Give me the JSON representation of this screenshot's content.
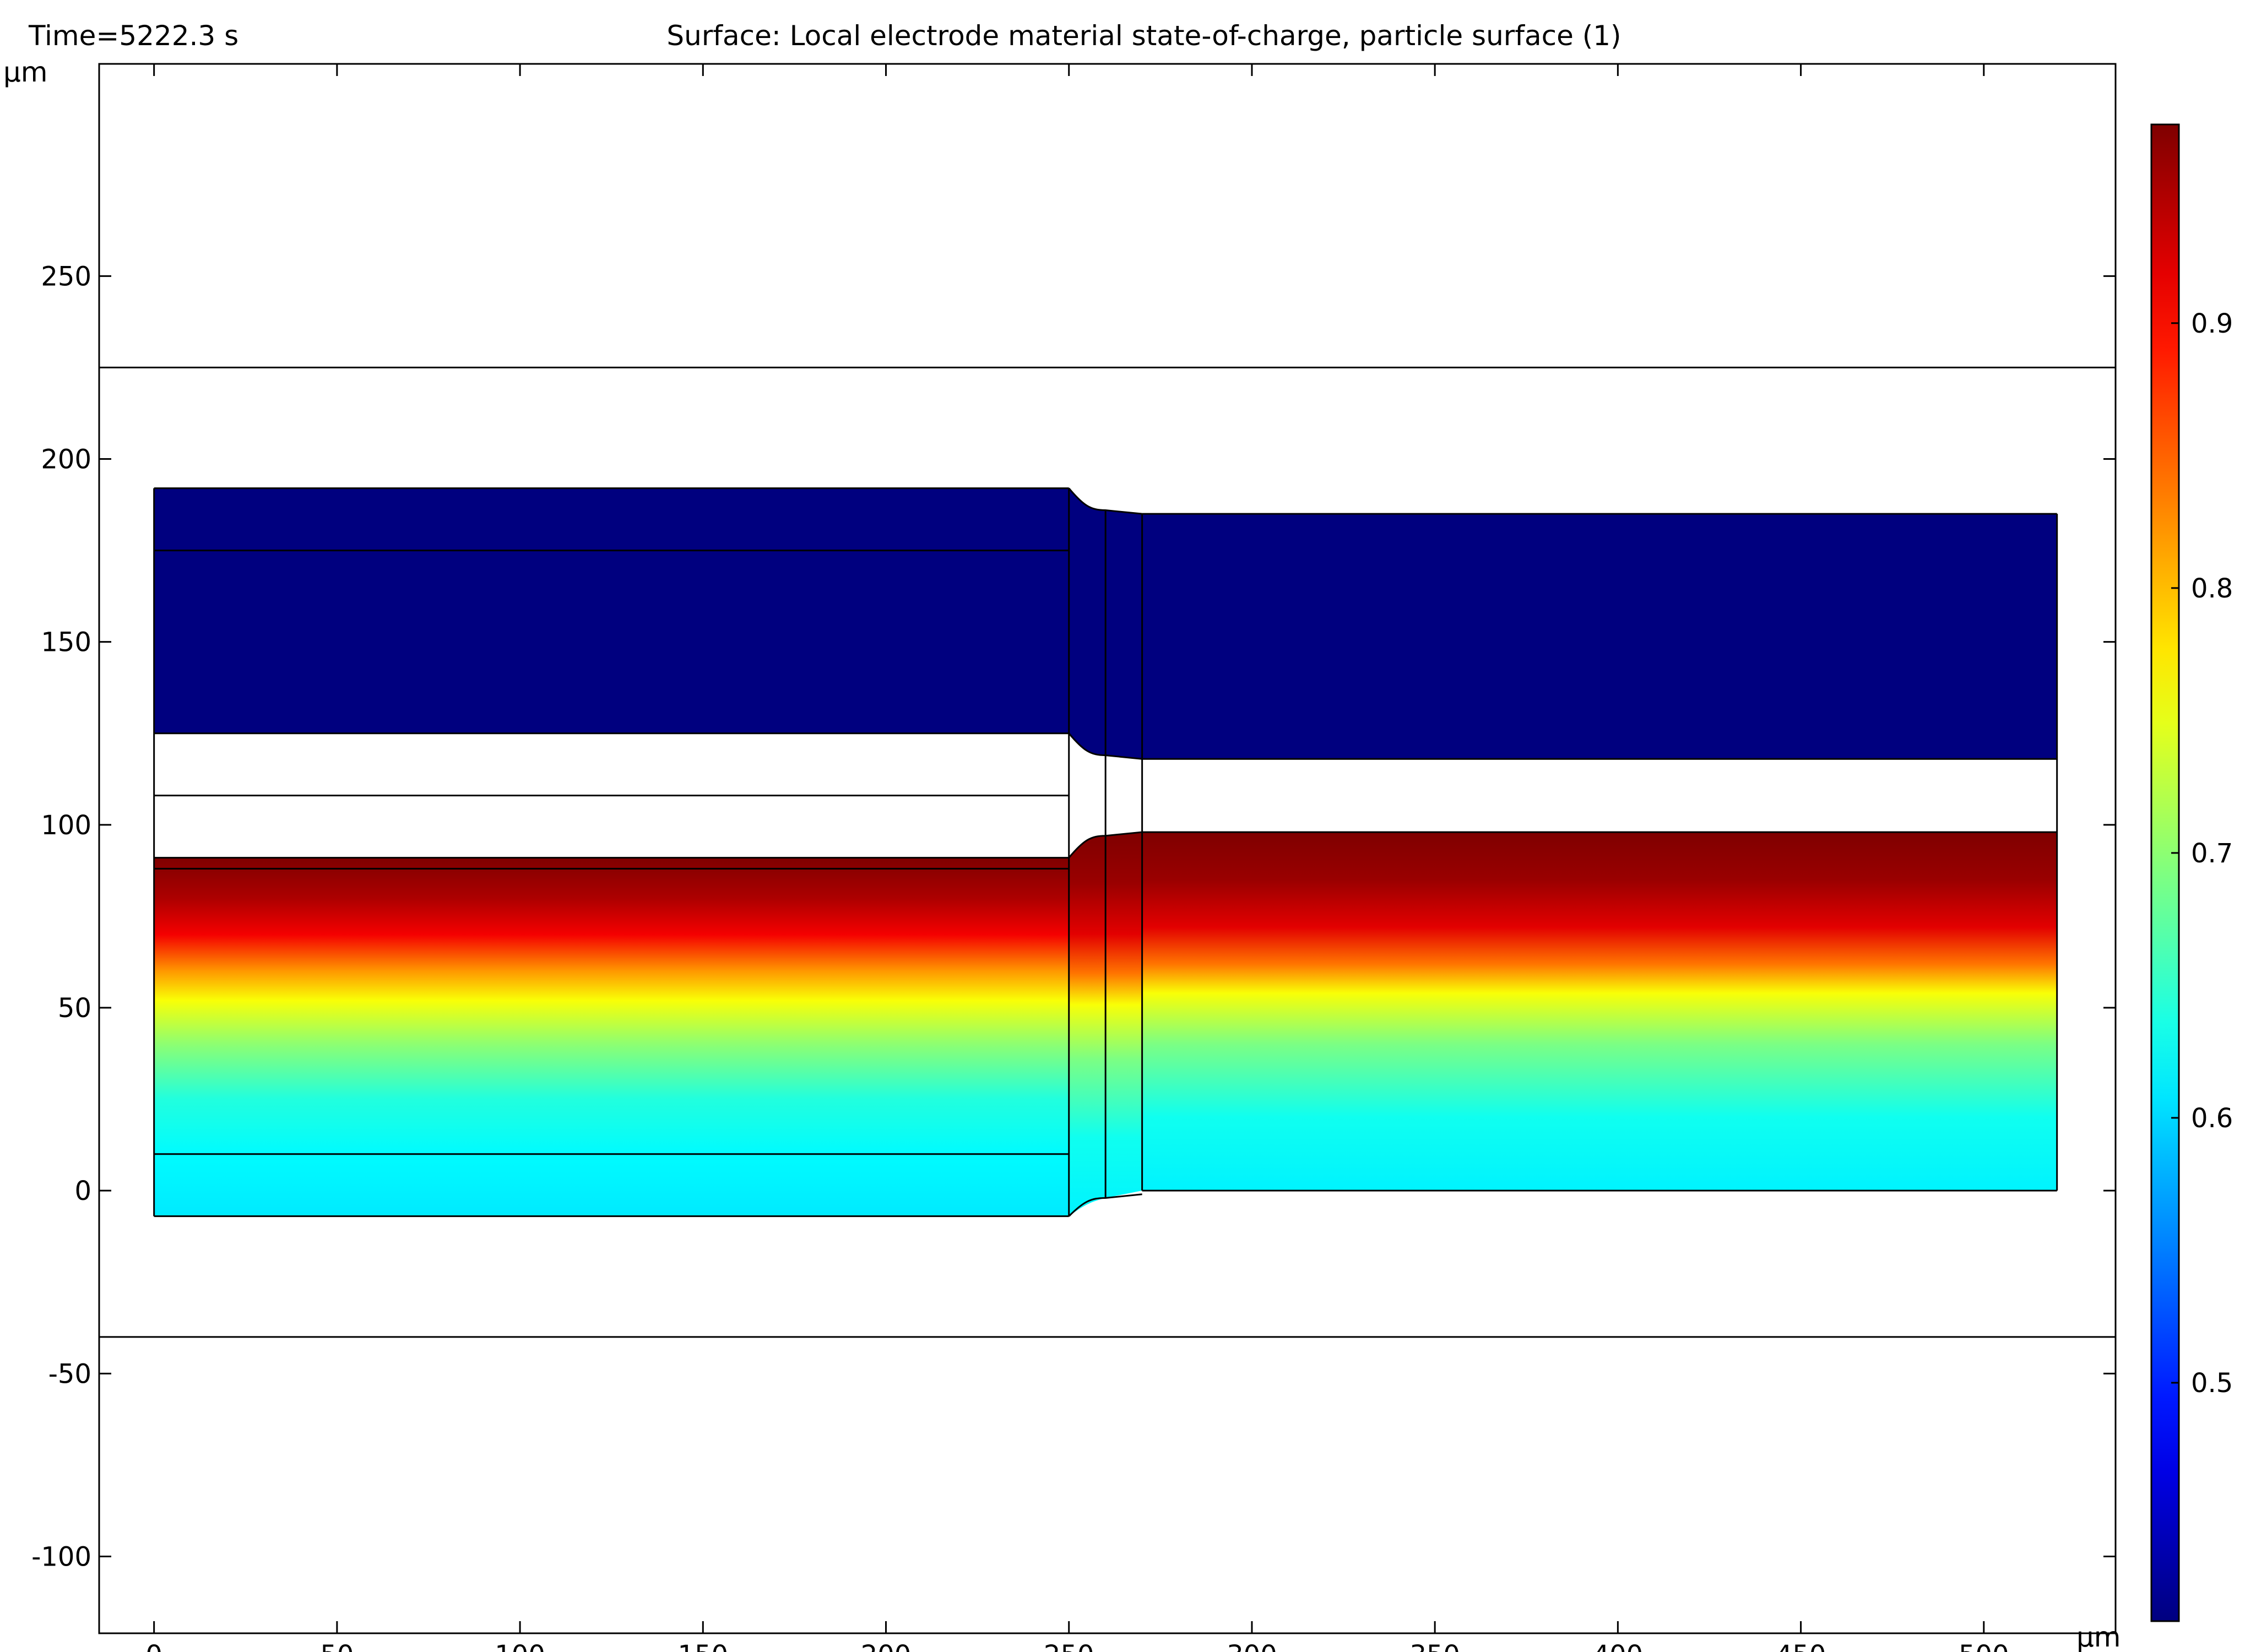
{
  "header": {
    "time_label": "Time=5222.3 s",
    "title": "Surface: Local electrode material state-of-charge, particle surface (1)"
  },
  "chart_data": {
    "type": "heatmap",
    "title": "Surface: Local electrode material state-of-charge, particle surface (1)",
    "time": "Time=5222.3 s",
    "xlabel": "µm",
    "ylabel": "µm",
    "xlim": [
      -15,
      536
    ],
    "ylim": [
      -121,
      308
    ],
    "x_ticks": [
      0,
      50,
      100,
      150,
      200,
      250,
      300,
      350,
      400,
      450,
      500
    ],
    "y_ticks": [
      -100,
      -50,
      0,
      50,
      100,
      150,
      200,
      250
    ],
    "tick_labels": {
      "x": [
        "0",
        "50",
        "100",
        "150",
        "200",
        "250",
        "300",
        "350",
        "400",
        "450",
        "500"
      ],
      "y": [
        "-100",
        "-50",
        "0",
        "50",
        "100",
        "150",
        "200",
        "250"
      ]
    },
    "colorbar": {
      "min": 0.41,
      "max": 0.975,
      "ticks": [
        0.5,
        0.6,
        0.7,
        0.8,
        0.9
      ],
      "tick_labels": [
        "0.5",
        "0.6",
        "0.7",
        "0.8",
        "0.9"
      ],
      "colormap": "rainbow (jet)",
      "colors": [
        "#00007F",
        "#0000FF",
        "#00FFFF",
        "#FFFF00",
        "#FF0000",
        "#7F0000"
      ]
    },
    "domain_lines_y": [
      225,
      -40
    ],
    "regions": [
      {
        "name": "top electrode (left, upper band)",
        "x": [
          0,
          250
        ],
        "y": [
          175,
          192
        ],
        "value": 0.41
      },
      {
        "name": "top electrode (left, lower band)",
        "x": [
          0,
          250
        ],
        "y": [
          125,
          175
        ],
        "value": 0.41
      },
      {
        "name": "top electrode (right)",
        "x": [
          270,
          520
        ],
        "y": [
          118,
          185
        ],
        "value": 0.41
      },
      {
        "name": "separator (left, upper)",
        "x": [
          0,
          250
        ],
        "y": [
          108,
          125
        ]
      },
      {
        "name": "separator (left, lower)",
        "x": [
          0,
          250
        ],
        "y": [
          91,
          108
        ]
      },
      {
        "name": "separator (right)",
        "x": [
          270,
          520
        ],
        "y": [
          98,
          118
        ]
      },
      {
        "name": "bottom electrode (left)",
        "x": [
          0,
          250
        ],
        "y": [
          -7,
          91
        ]
      },
      {
        "name": "bottom electrode (right)",
        "x": [
          270,
          520
        ],
        "y": [
          0,
          98
        ]
      }
    ],
    "gradient_profile_left": [
      {
        "y": 91,
        "value": 0.975
      },
      {
        "y": 80,
        "value": 0.95
      },
      {
        "y": 70,
        "value": 0.91
      },
      {
        "y": 60,
        "value": 0.82
      },
      {
        "y": 52,
        "value": 0.76
      },
      {
        "y": 40,
        "value": 0.7
      },
      {
        "y": 25,
        "value": 0.64
      },
      {
        "y": 10,
        "value": 0.62
      },
      {
        "y": -7,
        "value": 0.61
      }
    ],
    "gradient_profile_right": [
      {
        "y": 98,
        "value": 0.975
      },
      {
        "y": 85,
        "value": 0.96
      },
      {
        "y": 72,
        "value": 0.92
      },
      {
        "y": 62,
        "value": 0.84
      },
      {
        "y": 54,
        "value": 0.76
      },
      {
        "y": 40,
        "value": 0.69
      },
      {
        "y": 20,
        "value": 0.63
      },
      {
        "y": 0,
        "value": 0.615
      }
    ]
  }
}
